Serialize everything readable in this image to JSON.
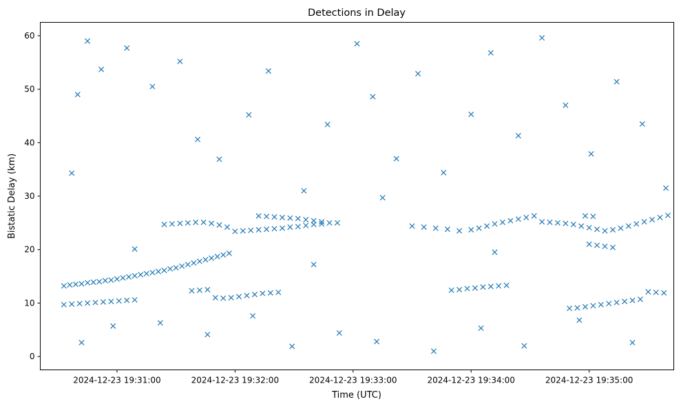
{
  "chart_data": {
    "type": "scatter",
    "title": "Detections in Delay",
    "xlabel": "Time (UTC)",
    "ylabel": "Bistatic Delay (km)",
    "marker": "x",
    "color": "#1f77b4",
    "grid": false,
    "x_range": [
      "2024-12-23 19:30:21",
      "2024-12-23 19:35:43"
    ],
    "ylim": [
      -2.5,
      62.5
    ],
    "x_ticks": [
      "2024-12-23 19:31:00",
      "2024-12-23 19:32:00",
      "2024-12-23 19:33:00",
      "2024-12-23 19:34:00",
      "2024-12-23 19:35:00"
    ],
    "y_ticks": [
      0,
      10,
      20,
      30,
      40,
      50,
      60
    ],
    "series": [
      {
        "points": [
          [
            "2024-12-23 19:30:33",
            13.2
          ],
          [
            "2024-12-23 19:30:36",
            13.4
          ],
          [
            "2024-12-23 19:30:39",
            13.5
          ],
          [
            "2024-12-23 19:30:42",
            13.6
          ],
          [
            "2024-12-23 19:30:45",
            13.8
          ],
          [
            "2024-12-23 19:30:48",
            13.9
          ],
          [
            "2024-12-23 19:30:51",
            14.0
          ],
          [
            "2024-12-23 19:30:54",
            14.2
          ],
          [
            "2024-12-23 19:30:57",
            14.3
          ],
          [
            "2024-12-23 19:31:00",
            14.5
          ],
          [
            "2024-12-23 19:31:03",
            14.7
          ],
          [
            "2024-12-23 19:31:06",
            14.9
          ],
          [
            "2024-12-23 19:31:09",
            15.1
          ],
          [
            "2024-12-23 19:31:12",
            15.3
          ],
          [
            "2024-12-23 19:31:15",
            15.5
          ],
          [
            "2024-12-23 19:31:18",
            15.7
          ],
          [
            "2024-12-23 19:31:21",
            15.9
          ],
          [
            "2024-12-23 19:31:24",
            16.1
          ],
          [
            "2024-12-23 19:31:27",
            16.4
          ],
          [
            "2024-12-23 19:31:30",
            16.6
          ],
          [
            "2024-12-23 19:31:33",
            16.9
          ],
          [
            "2024-12-23 19:31:36",
            17.2
          ],
          [
            "2024-12-23 19:31:39",
            17.5
          ],
          [
            "2024-12-23 19:31:42",
            17.8
          ],
          [
            "2024-12-23 19:31:45",
            18.1
          ],
          [
            "2024-12-23 19:31:48",
            18.4
          ],
          [
            "2024-12-23 19:31:51",
            18.7
          ],
          [
            "2024-12-23 19:31:54",
            19.0
          ],
          [
            "2024-12-23 19:31:57",
            19.3
          ],
          [
            "2024-12-23 19:32:00",
            23.4
          ],
          [
            "2024-12-23 19:32:04",
            23.5
          ],
          [
            "2024-12-23 19:32:08",
            23.6
          ],
          [
            "2024-12-23 19:32:12",
            23.7
          ],
          [
            "2024-12-23 19:32:16",
            23.8
          ],
          [
            "2024-12-23 19:32:20",
            23.9
          ],
          [
            "2024-12-23 19:32:24",
            24.0
          ],
          [
            "2024-12-23 19:32:28",
            24.2
          ],
          [
            "2024-12-23 19:32:32",
            24.3
          ],
          [
            "2024-12-23 19:32:36",
            24.5
          ],
          [
            "2024-12-23 19:32:40",
            24.7
          ],
          [
            "2024-12-23 19:32:44",
            24.8
          ],
          [
            "2024-12-23 19:32:48",
            25.0
          ],
          [
            "2024-12-23 19:32:52",
            25.0
          ],
          [
            "2024-12-23 19:32:12",
            26.3
          ],
          [
            "2024-12-23 19:32:16",
            26.2
          ],
          [
            "2024-12-23 19:32:20",
            26.1
          ],
          [
            "2024-12-23 19:32:24",
            26.0
          ],
          [
            "2024-12-23 19:32:28",
            25.9
          ],
          [
            "2024-12-23 19:32:32",
            25.8
          ],
          [
            "2024-12-23 19:32:36",
            25.6
          ],
          [
            "2024-12-23 19:32:40",
            25.4
          ],
          [
            "2024-12-23 19:32:44",
            25.2
          ],
          [
            "2024-12-23 19:33:30",
            24.4
          ],
          [
            "2024-12-23 19:33:36",
            24.2
          ],
          [
            "2024-12-23 19:33:42",
            24.0
          ],
          [
            "2024-12-23 19:33:48",
            23.8
          ],
          [
            "2024-12-23 19:33:54",
            23.5
          ],
          [
            "2024-12-23 19:34:00",
            23.7
          ],
          [
            "2024-12-23 19:34:04",
            24.0
          ],
          [
            "2024-12-23 19:34:08",
            24.4
          ],
          [
            "2024-12-23 19:34:12",
            24.8
          ],
          [
            "2024-12-23 19:34:16",
            25.1
          ],
          [
            "2024-12-23 19:34:20",
            25.4
          ],
          [
            "2024-12-23 19:34:24",
            25.7
          ],
          [
            "2024-12-23 19:34:28",
            26.0
          ],
          [
            "2024-12-23 19:34:32",
            26.3
          ],
          [
            "2024-12-23 19:34:36",
            25.2
          ],
          [
            "2024-12-23 19:34:40",
            25.1
          ],
          [
            "2024-12-23 19:34:44",
            25.0
          ],
          [
            "2024-12-23 19:34:48",
            24.9
          ],
          [
            "2024-12-23 19:34:52",
            24.7
          ],
          [
            "2024-12-23 19:34:56",
            24.4
          ],
          [
            "2024-12-23 19:35:00",
            24.1
          ],
          [
            "2024-12-23 19:35:04",
            23.8
          ],
          [
            "2024-12-23 19:35:08",
            23.5
          ],
          [
            "2024-12-23 19:35:12",
            23.7
          ],
          [
            "2024-12-23 19:35:16",
            24.0
          ],
          [
            "2024-12-23 19:35:20",
            24.4
          ],
          [
            "2024-12-23 19:35:24",
            24.8
          ],
          [
            "2024-12-23 19:35:28",
            25.2
          ],
          [
            "2024-12-23 19:35:32",
            25.6
          ],
          [
            "2024-12-23 19:35:36",
            26.0
          ],
          [
            "2024-12-23 19:35:40",
            26.4
          ],
          [
            "2024-12-23 19:34:58",
            26.3
          ],
          [
            "2024-12-23 19:35:02",
            26.2
          ],
          [
            "2024-12-23 19:30:33",
            9.7
          ],
          [
            "2024-12-23 19:30:37",
            9.8
          ],
          [
            "2024-12-23 19:30:41",
            9.9
          ],
          [
            "2024-12-23 19:30:45",
            10.0
          ],
          [
            "2024-12-23 19:30:49",
            10.1
          ],
          [
            "2024-12-23 19:30:53",
            10.2
          ],
          [
            "2024-12-23 19:30:57",
            10.3
          ],
          [
            "2024-12-23 19:31:01",
            10.4
          ],
          [
            "2024-12-23 19:31:05",
            10.5
          ],
          [
            "2024-12-23 19:31:09",
            10.6
          ],
          [
            "2024-12-23 19:31:38",
            12.3
          ],
          [
            "2024-12-23 19:31:42",
            12.4
          ],
          [
            "2024-12-23 19:31:46",
            12.5
          ],
          [
            "2024-12-23 19:31:50",
            11.0
          ],
          [
            "2024-12-23 19:31:54",
            10.9
          ],
          [
            "2024-12-23 19:31:58",
            11.0
          ],
          [
            "2024-12-23 19:32:02",
            11.2
          ],
          [
            "2024-12-23 19:32:06",
            11.4
          ],
          [
            "2024-12-23 19:32:10",
            11.6
          ],
          [
            "2024-12-23 19:32:14",
            11.8
          ],
          [
            "2024-12-23 19:32:18",
            11.9
          ],
          [
            "2024-12-23 19:32:22",
            12.0
          ],
          [
            "2024-12-23 19:33:50",
            12.4
          ],
          [
            "2024-12-23 19:33:54",
            12.5
          ],
          [
            "2024-12-23 19:33:58",
            12.7
          ],
          [
            "2024-12-23 19:34:02",
            12.8
          ],
          [
            "2024-12-23 19:34:06",
            13.0
          ],
          [
            "2024-12-23 19:34:10",
            13.1
          ],
          [
            "2024-12-23 19:34:14",
            13.2
          ],
          [
            "2024-12-23 19:34:18",
            13.3
          ],
          [
            "2024-12-23 19:34:50",
            9.0
          ],
          [
            "2024-12-23 19:34:54",
            9.1
          ],
          [
            "2024-12-23 19:34:58",
            9.3
          ],
          [
            "2024-12-23 19:35:02",
            9.5
          ],
          [
            "2024-12-23 19:35:06",
            9.7
          ],
          [
            "2024-12-23 19:35:10",
            9.9
          ],
          [
            "2024-12-23 19:35:14",
            10.1
          ],
          [
            "2024-12-23 19:35:18",
            10.3
          ],
          [
            "2024-12-23 19:35:22",
            10.5
          ],
          [
            "2024-12-23 19:35:26",
            10.7
          ],
          [
            "2024-12-23 19:35:30",
            12.1
          ],
          [
            "2024-12-23 19:35:34",
            12.0
          ],
          [
            "2024-12-23 19:35:38",
            11.9
          ],
          [
            "2024-12-23 19:31:24",
            24.7
          ],
          [
            "2024-12-23 19:31:28",
            24.8
          ],
          [
            "2024-12-23 19:31:32",
            24.9
          ],
          [
            "2024-12-23 19:31:36",
            25.0
          ],
          [
            "2024-12-23 19:31:40",
            25.1
          ],
          [
            "2024-12-23 19:31:44",
            25.1
          ],
          [
            "2024-12-23 19:31:48",
            24.9
          ],
          [
            "2024-12-23 19:31:52",
            24.6
          ],
          [
            "2024-12-23 19:31:56",
            24.2
          ],
          [
            "2024-12-23 19:35:00",
            21.0
          ],
          [
            "2024-12-23 19:35:04",
            20.8
          ],
          [
            "2024-12-23 19:35:08",
            20.6
          ],
          [
            "2024-12-23 19:35:12",
            20.4
          ],
          [
            "2024-12-23 19:30:37",
            34.3
          ],
          [
            "2024-12-23 19:30:40",
            49.0
          ],
          [
            "2024-12-23 19:30:45",
            59.0
          ],
          [
            "2024-12-23 19:30:52",
            53.7
          ],
          [
            "2024-12-23 19:31:05",
            57.7
          ],
          [
            "2024-12-23 19:31:18",
            50.5
          ],
          [
            "2024-12-23 19:31:32",
            55.2
          ],
          [
            "2024-12-23 19:31:41",
            40.6
          ],
          [
            "2024-12-23 19:31:52",
            36.9
          ],
          [
            "2024-12-23 19:32:07",
            45.2
          ],
          [
            "2024-12-23 19:32:17",
            53.4
          ],
          [
            "2024-12-23 19:32:35",
            31.0
          ],
          [
            "2024-12-23 19:32:47",
            43.4
          ],
          [
            "2024-12-23 19:33:02",
            58.5
          ],
          [
            "2024-12-23 19:33:10",
            48.6
          ],
          [
            "2024-12-23 19:33:22",
            37.0
          ],
          [
            "2024-12-23 19:33:33",
            52.9
          ],
          [
            "2024-12-23 19:33:46",
            34.4
          ],
          [
            "2024-12-23 19:34:00",
            45.3
          ],
          [
            "2024-12-23 19:34:10",
            56.8
          ],
          [
            "2024-12-23 19:34:24",
            41.3
          ],
          [
            "2024-12-23 19:34:36",
            59.6
          ],
          [
            "2024-12-23 19:34:48",
            47.0
          ],
          [
            "2024-12-23 19:35:01",
            37.9
          ],
          [
            "2024-12-23 19:35:14",
            51.4
          ],
          [
            "2024-12-23 19:35:27",
            43.5
          ],
          [
            "2024-12-23 19:35:39",
            31.5
          ],
          [
            "2024-12-23 19:30:42",
            2.6
          ],
          [
            "2024-12-23 19:30:58",
            5.7
          ],
          [
            "2024-12-23 19:31:22",
            6.3
          ],
          [
            "2024-12-23 19:31:46",
            4.1
          ],
          [
            "2024-12-23 19:32:09",
            7.6
          ],
          [
            "2024-12-23 19:32:29",
            1.9
          ],
          [
            "2024-12-23 19:32:53",
            4.4
          ],
          [
            "2024-12-23 19:33:12",
            2.8
          ],
          [
            "2024-12-23 19:33:41",
            1.0
          ],
          [
            "2024-12-23 19:34:05",
            5.3
          ],
          [
            "2024-12-23 19:34:27",
            2.0
          ],
          [
            "2024-12-23 19:34:55",
            6.8
          ],
          [
            "2024-12-23 19:35:22",
            2.6
          ],
          [
            "2024-12-23 19:31:09",
            20.1
          ],
          [
            "2024-12-23 19:32:40",
            17.2
          ],
          [
            "2024-12-23 19:33:15",
            29.7
          ],
          [
            "2024-12-23 19:34:12",
            19.5
          ]
        ]
      }
    ]
  }
}
